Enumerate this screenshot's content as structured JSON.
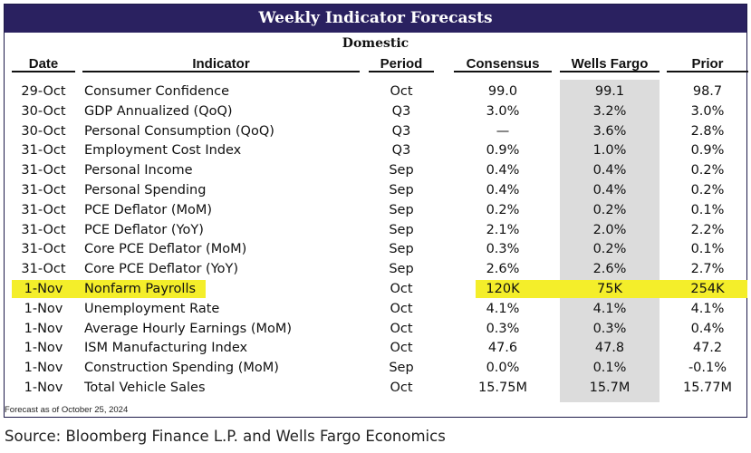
{
  "title": "Weekly Indicator Forecasts",
  "subtitle": "Domestic",
  "headers": {
    "date": "Date",
    "indicator": "Indicator",
    "period": "Period",
    "consensus": "Consensus",
    "wells_fargo": "Wells Fargo",
    "prior": "Prior"
  },
  "rows": [
    {
      "date": "29-Oct",
      "indicator": "Consumer Confidence",
      "period": "Oct",
      "consensus": "99.0",
      "wells_fargo": "99.1",
      "prior": "98.7"
    },
    {
      "date": "30-Oct",
      "indicator": "GDP Annualized (QoQ)",
      "period": "Q3",
      "consensus": "3.0%",
      "wells_fargo": "3.2%",
      "prior": "3.0%"
    },
    {
      "date": "30-Oct",
      "indicator": "Personal Consumption (QoQ)",
      "period": "Q3",
      "consensus": "—",
      "wells_fargo": "3.6%",
      "prior": "2.8%"
    },
    {
      "date": "31-Oct",
      "indicator": "Employment Cost Index",
      "period": "Q3",
      "consensus": "0.9%",
      "wells_fargo": "1.0%",
      "prior": "0.9%"
    },
    {
      "date": "31-Oct",
      "indicator": "Personal Income",
      "period": "Sep",
      "consensus": "0.4%",
      "wells_fargo": "0.4%",
      "prior": "0.2%"
    },
    {
      "date": "31-Oct",
      "indicator": "Personal Spending",
      "period": "Sep",
      "consensus": "0.4%",
      "wells_fargo": "0.4%",
      "prior": "0.2%"
    },
    {
      "date": "31-Oct",
      "indicator": "PCE Deflator (MoM)",
      "period": "Sep",
      "consensus": "0.2%",
      "wells_fargo": "0.2%",
      "prior": "0.1%"
    },
    {
      "date": "31-Oct",
      "indicator": "PCE Deflator (YoY)",
      "period": "Sep",
      "consensus": "2.1%",
      "wells_fargo": "2.0%",
      "prior": "2.2%"
    },
    {
      "date": "31-Oct",
      "indicator": "Core PCE Deflator (MoM)",
      "period": "Sep",
      "consensus": "0.3%",
      "wells_fargo": "0.2%",
      "prior": "0.1%"
    },
    {
      "date": "31-Oct",
      "indicator": "Core PCE Deflator (YoY)",
      "period": "Sep",
      "consensus": "2.6%",
      "wells_fargo": "2.6%",
      "prior": "2.7%"
    },
    {
      "date": "1-Nov",
      "indicator": "Nonfarm Payrolls",
      "period": "Oct",
      "consensus": "120K",
      "wells_fargo": "75K",
      "prior": "254K"
    },
    {
      "date": "1-Nov",
      "indicator": "Unemployment Rate",
      "period": "Oct",
      "consensus": "4.1%",
      "wells_fargo": "4.1%",
      "prior": "4.1%"
    },
    {
      "date": "1-Nov",
      "indicator": "Average Hourly Earnings (MoM)",
      "period": "Oct",
      "consensus": "0.3%",
      "wells_fargo": "0.3%",
      "prior": "0.4%"
    },
    {
      "date": "1-Nov",
      "indicator": "ISM Manufacturing Index",
      "period": "Oct",
      "consensus": "47.6",
      "wells_fargo": "47.8",
      "prior": "47.2"
    },
    {
      "date": "1-Nov",
      "indicator": "Construction Spending (MoM)",
      "period": "Sep",
      "consensus": "0.0%",
      "wells_fargo": "0.1%",
      "prior": "-0.1%"
    },
    {
      "date": "1-Nov",
      "indicator": "Total Vehicle Sales",
      "period": "Oct",
      "consensus": "15.75M",
      "wells_fargo": "15.7M",
      "prior": "15.77M"
    }
  ],
  "footnote": "Forecast as of October 25, 2024",
  "source": "Source: Bloomberg Finance L.P. and Wells Fargo Economics",
  "colors": {
    "title_bar": "#2a2160",
    "highlight": "#f4ee2a",
    "wells_fargo_column": "#dcdcdc"
  }
}
